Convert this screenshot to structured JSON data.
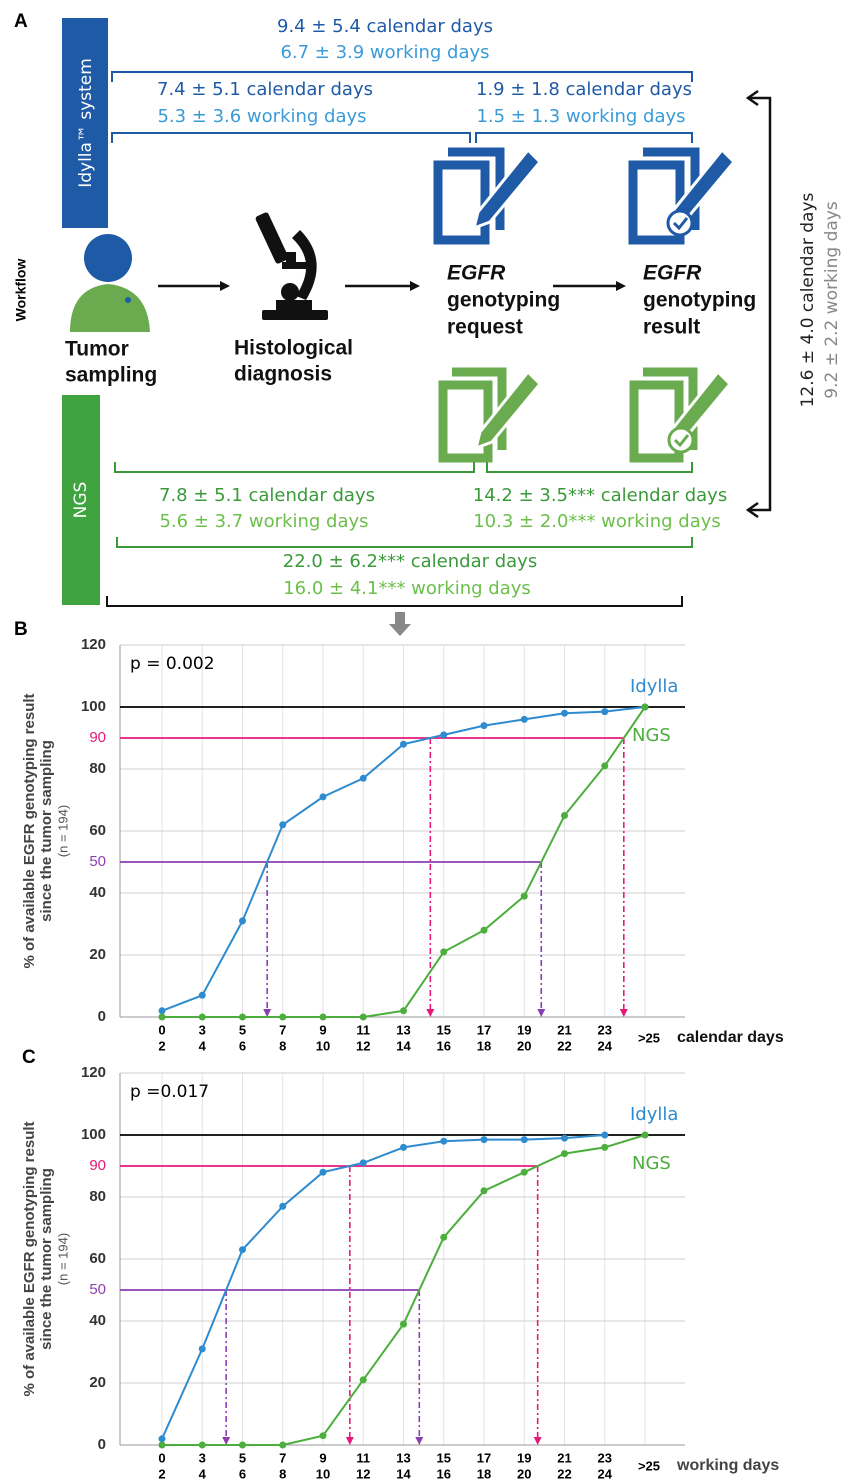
{
  "panel_labels": [
    "A",
    "B",
    "C"
  ],
  "workflow": {
    "axis_label": "Workflow",
    "idylla_label": "Idylla™ system",
    "ngs_label": "NGS",
    "idylla_total": [
      "9.4 ± 5.4 calendar days",
      "6.7 ± 3.9 working days"
    ],
    "idylla_first": [
      "7.4 ± 5.1 calendar days",
      "5.3 ± 3.6 working days"
    ],
    "idylla_second": [
      "1.9 ± 1.8 calendar days",
      "1.5 ± 1.3 working days"
    ],
    "steps": [
      [
        "Tumor",
        "sampling"
      ],
      [
        "Histological",
        "diagnosis"
      ],
      [
        "EGFR",
        "genotyping",
        "request"
      ],
      [
        "EGFR",
        "genotyping",
        "result"
      ]
    ],
    "ngs_first": [
      "7.8 ± 5.1 calendar days",
      "5.6 ± 3.7 working days"
    ],
    "ngs_second": [
      "14.2 ± 3.5*** calendar days",
      "10.3 ± 2.0*** working days"
    ],
    "ngs_total": [
      "22.0 ± 6.2*** calendar days",
      "16.0 ± 4.1*** working days"
    ],
    "difference": [
      "12.6 ± 4.0 calendar days",
      "9.2 ± 2.2 working days"
    ]
  },
  "chart_data": [
    {
      "type": "line",
      "annotation": "p = 0.002",
      "ylabel": [
        "% of available EGFR genotyping result",
        "since the tumor sampling",
        "(n = 194)"
      ],
      "xlabel": "calendar days",
      "categories": [
        [
          "0",
          "2"
        ],
        [
          "3",
          "4"
        ],
        [
          "5",
          "6"
        ],
        [
          "7",
          "8"
        ],
        [
          "9",
          "10"
        ],
        [
          "11",
          "12"
        ],
        [
          "13",
          "14"
        ],
        [
          "15",
          "16"
        ],
        [
          "17",
          "18"
        ],
        [
          "19",
          "20"
        ],
        [
          "21",
          "22"
        ],
        [
          "23",
          "24"
        ],
        [
          ">25"
        ]
      ],
      "series": [
        {
          "name": "Idylla",
          "color": "#2e8bcf",
          "values": [
            2,
            7,
            31,
            62,
            71,
            77,
            88,
            91,
            94,
            96,
            98,
            98.5,
            100
          ]
        },
        {
          "name": "NGS",
          "color": "#4cae3c",
          "values": [
            0,
            0,
            0,
            0,
            0,
            0,
            2,
            21,
            28,
            39,
            65,
            81,
            100
          ]
        }
      ],
      "ylim": [
        0,
        120
      ],
      "yticks": [
        0,
        20,
        40,
        60,
        80,
        100,
        120
      ],
      "reference_lines": [
        {
          "value": 100,
          "color": "#000000"
        }
      ],
      "thresholds": [
        {
          "value": 90,
          "color": "#e6197a"
        },
        {
          "value": 50,
          "color": "#8b3fae"
        }
      ],
      "grid": true
    },
    {
      "type": "line",
      "annotation": "p =0.017",
      "ylabel": [
        "% of available EGFR genotyping result",
        "since the tumor sampling",
        "(n = 194)"
      ],
      "xlabel": "working days",
      "categories": [
        [
          "0",
          "2"
        ],
        [
          "3",
          "4"
        ],
        [
          "5",
          "6"
        ],
        [
          "7",
          "8"
        ],
        [
          "9",
          "10"
        ],
        [
          "11",
          "12"
        ],
        [
          "13",
          "14"
        ],
        [
          "15",
          "16"
        ],
        [
          "17",
          "18"
        ],
        [
          "19",
          "20"
        ],
        [
          "21",
          "22"
        ],
        [
          "23",
          "24"
        ],
        [
          ">25"
        ]
      ],
      "series": [
        {
          "name": "Idylla",
          "color": "#2e8bcf",
          "values": [
            2,
            31,
            63,
            77,
            88,
            91,
            96,
            98,
            98.5,
            98.5,
            99,
            100,
            null
          ]
        },
        {
          "name": "NGS",
          "color": "#4cae3c",
          "values": [
            0,
            0,
            0,
            0,
            3,
            21,
            39,
            67,
            82,
            88,
            94,
            96,
            100
          ]
        }
      ],
      "ylim": [
        0,
        120
      ],
      "yticks": [
        0,
        20,
        40,
        60,
        80,
        100,
        120
      ],
      "reference_lines": [
        {
          "value": 100,
          "color": "#000000"
        }
      ],
      "thresholds": [
        {
          "value": 90,
          "color": "#e6197a"
        },
        {
          "value": 50,
          "color": "#8b3fae"
        }
      ],
      "grid": true
    }
  ]
}
